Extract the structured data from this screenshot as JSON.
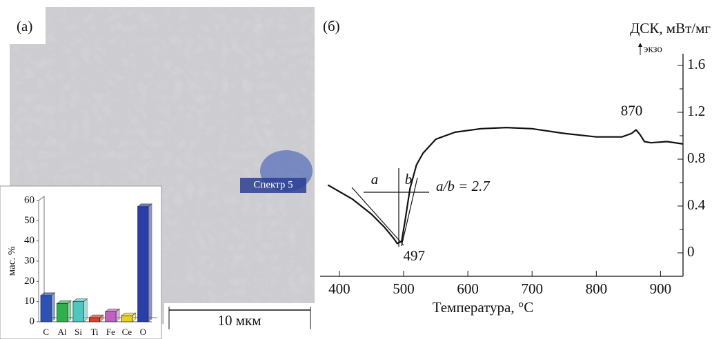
{
  "chart_data": [
    {
      "type": "bar",
      "panel_label": "(а)",
      "spectrum_label": "Спектр 5",
      "scale_label": "10 мкм",
      "ylabel": "мас. %",
      "categories": [
        "C",
        "Al",
        "Si",
        "Ti",
        "Fe",
        "Ce",
        "O"
      ],
      "values": [
        13,
        9,
        10,
        2,
        5,
        3,
        57
      ],
      "colors": [
        "#2a52b8",
        "#2fb04a",
        "#4cc8c0",
        "#e0402a",
        "#c060c0",
        "#e8d020",
        "#2a3ea8"
      ],
      "ylim": [
        0,
        60
      ],
      "yticks": [
        0,
        10,
        20,
        30,
        40,
        50,
        60
      ]
    },
    {
      "type": "line",
      "panel_label": "(б)",
      "ylabel": "ДСК, мВт/мг",
      "exo_label": "экзо",
      "xlabel": "Температура, °C",
      "color": "#111111",
      "x": [
        382,
        420,
        450,
        470,
        485,
        490,
        497,
        503,
        510,
        520,
        530,
        550,
        580,
        620,
        660,
        700,
        750,
        800,
        840,
        855,
        862,
        868,
        875,
        885,
        910,
        935
      ],
      "values": [
        0.58,
        0.46,
        0.33,
        0.22,
        0.12,
        0.08,
        0.1,
        0.3,
        0.55,
        0.75,
        0.85,
        0.97,
        1.03,
        1.06,
        1.07,
        1.06,
        1.02,
        0.99,
        0.99,
        1.02,
        1.05,
        1.01,
        0.95,
        0.94,
        0.95,
        0.93
      ],
      "peaks": [
        870,
        497
      ],
      "annotations": [
        "a",
        "b",
        "a/b = 2.7"
      ],
      "xlim": [
        370,
        935
      ],
      "ylim": [
        -0.2,
        1.7
      ],
      "xticks": [
        400,
        500,
        600,
        700,
        800,
        900
      ],
      "yticks": [
        0,
        0.4,
        0.8,
        1.2,
        1.6
      ]
    }
  ]
}
